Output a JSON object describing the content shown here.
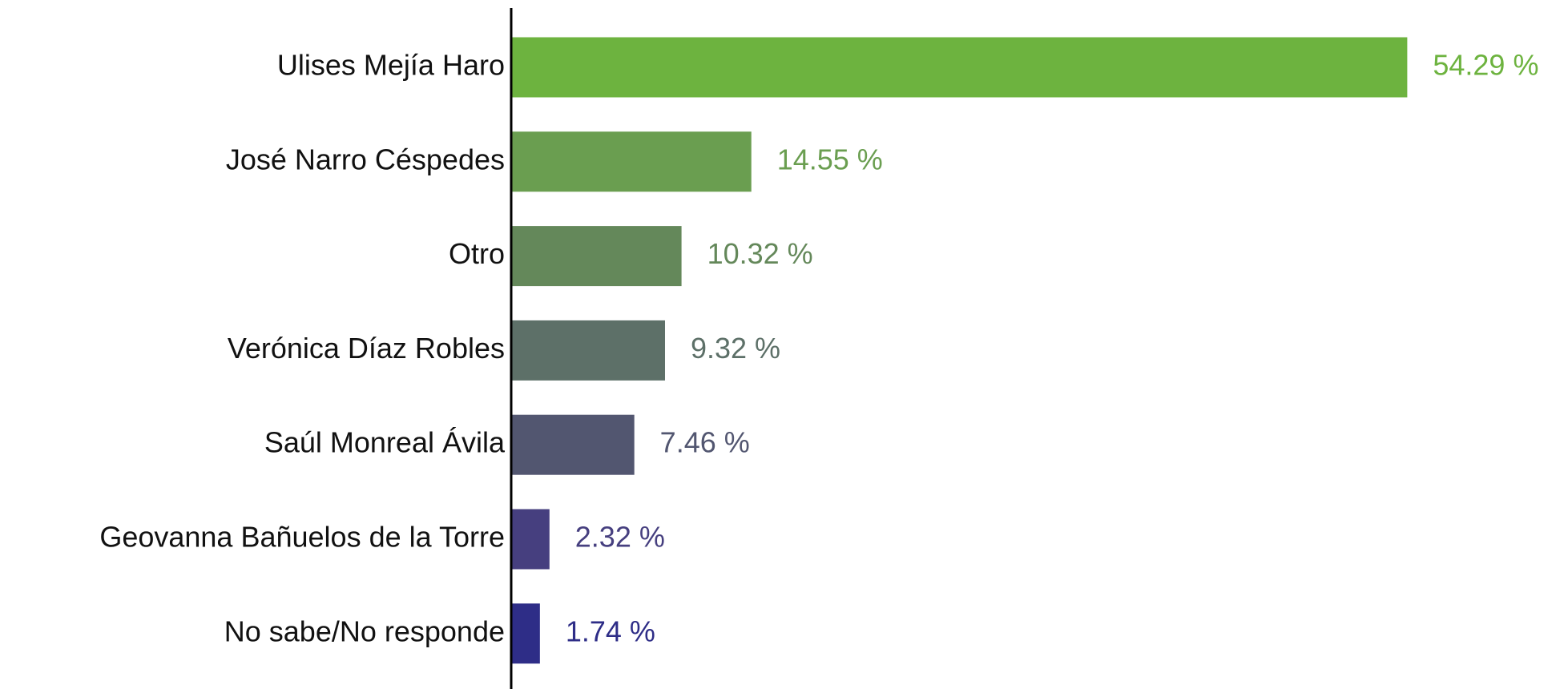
{
  "chart_data": {
    "type": "bar",
    "orientation": "horizontal",
    "categories": [
      "Ulises Mejía Haro",
      "José Narro Céspedes",
      "Otro",
      "Verónica Díaz Robles",
      "Saúl Monreal Ávila",
      "Geovanna Bañuelos de la Torre",
      "No sabe/No responde"
    ],
    "values": [
      54.29,
      14.55,
      10.32,
      9.32,
      7.46,
      2.32,
      1.74
    ],
    "value_labels": [
      "54.29 %",
      "14.55 %",
      "10.32 %",
      "9.32 %",
      "7.46 %",
      "2.32 %",
      "1.74 %"
    ],
    "colors": [
      "#6db33f",
      "#6a9e50",
      "#64885a",
      "#5d7068",
      "#525670",
      "#463f7f",
      "#2e2d87"
    ]
  }
}
